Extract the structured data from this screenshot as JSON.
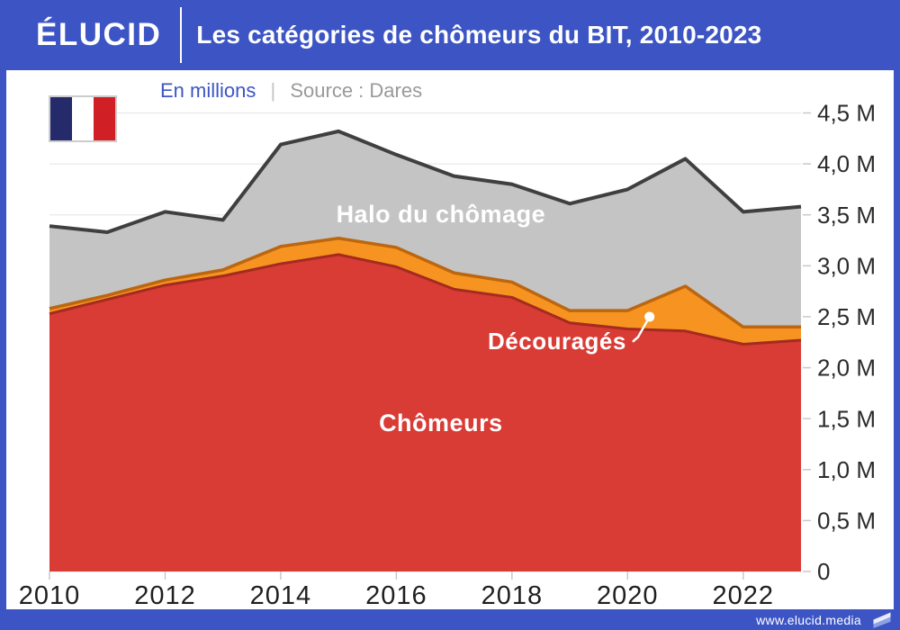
{
  "header": {
    "logo": "ÉLUCID",
    "title": "Les catégories de chômeurs du BIT, 2010-2023"
  },
  "subtitle": {
    "unit": "En millions",
    "separator": "|",
    "source": "Source : Dares"
  },
  "footer": {
    "url": "www.elucid.media"
  },
  "icons": {
    "flag": "france-flag-icon",
    "footer_logo": "elucid-flag-icon"
  },
  "colors": {
    "brand_blue": "#3d55c4",
    "subtitle_blue": "#3c55c4",
    "subtitle_gray": "#9a9a9a",
    "grid": "#e8e8e8",
    "tick": "#c9c9c9",
    "axis_text": "#2b2b2b",
    "label_white": "#ffffff",
    "flag_navy": "#252a6a",
    "flag_red": "#d02025",
    "footer_logo_light": "#e8ecf9",
    "footer_logo_blue": "#8ba1e6"
  },
  "chart_data": {
    "type": "area",
    "stacked": true,
    "title": "Les catégories de chômeurs du BIT, 2010-2023",
    "unit": "millions",
    "source": "Dares",
    "x": [
      2010,
      2011,
      2012,
      2013,
      2014,
      2015,
      2016,
      2017,
      2018,
      2019,
      2020,
      2021,
      2022,
      2023
    ],
    "series": [
      {
        "name": "Chômeurs",
        "color": "#d93b35",
        "stroke": "#a32b20",
        "stroke_width": 3,
        "values": [
          2.53,
          2.67,
          2.81,
          2.9,
          3.02,
          3.11,
          2.99,
          2.77,
          2.69,
          2.44,
          2.38,
          2.36,
          2.23,
          2.27
        ]
      },
      {
        "name": "Découragés",
        "color": "#f79421",
        "stroke": "#bc660f",
        "stroke_width": 3.5,
        "values": [
          0.05,
          0.04,
          0.05,
          0.06,
          0.17,
          0.16,
          0.19,
          0.16,
          0.15,
          0.12,
          0.18,
          0.44,
          0.17,
          0.13
        ]
      },
      {
        "name": "Halo du chômage",
        "color": "#c4c4c4",
        "stroke": "#3f3f3f",
        "stroke_width": 4,
        "values": [
          0.81,
          0.62,
          0.67,
          0.49,
          1.0,
          1.05,
          0.91,
          0.95,
          0.96,
          1.05,
          1.19,
          1.25,
          1.13,
          1.18
        ]
      }
    ],
    "ylim": [
      0,
      4.5
    ],
    "ytick_step": 0.5,
    "ytick_labels": [
      "0",
      "0,5 M",
      "1,0 M",
      "1,5 M",
      "2,0 M",
      "2,5 M",
      "3,0 M",
      "3,5 M",
      "4,0 M",
      "4,5 M"
    ],
    "xtick_labels": [
      "2010",
      "2012",
      "2014",
      "2016",
      "2018",
      "2020",
      "2022"
    ],
    "grid": true,
    "legend_position": "in-plot-labels",
    "annotations": [
      {
        "text": "Halo du chômage",
        "x": 2016.77,
        "y": 3.51,
        "font_px": 27
      },
      {
        "text": "Chômeurs",
        "x": 2016.77,
        "y": 1.46,
        "font_px": 27
      },
      {
        "text": "Découragés",
        "x": 2018.78,
        "y": 2.26,
        "font_px": 26,
        "leader": {
          "points": [
            [
              2020.1,
              2.26
            ],
            [
              2020.18,
              2.3
            ],
            [
              2020.38,
              2.5
            ]
          ],
          "dot": true
        }
      }
    ]
  }
}
